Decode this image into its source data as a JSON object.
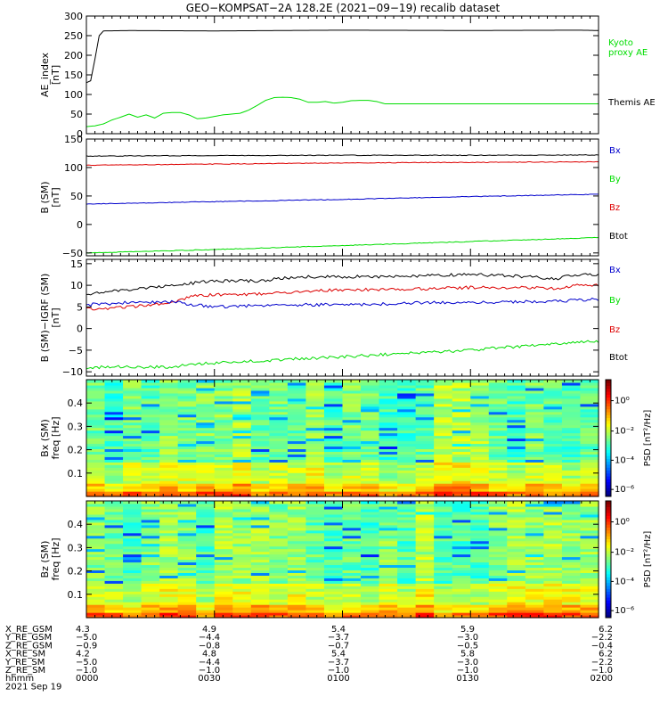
{
  "title": "GEO−KOMPSAT−2A 128.2E (2021−09−19) recalib dataset",
  "time_axis": {
    "range": [
      0,
      120
    ],
    "unit": "minutes since 0000 UT",
    "tick_values": [
      0,
      30,
      60,
      90,
      120
    ]
  },
  "chart_data": [
    {
      "type": "line",
      "id": "ae",
      "ylabel": "AE_index",
      "yunit": "[nT]",
      "ylim": [
        0,
        300
      ],
      "yticks": [
        0,
        50,
        100,
        150,
        200,
        250,
        300
      ],
      "legend": [
        {
          "label": "Kyoto",
          "color": "#00dd00"
        },
        {
          "label": "proxy AE",
          "color": "#00dd00"
        },
        {
          "label": "Themis AE",
          "color": "#000000"
        }
      ],
      "series": [
        {
          "color": "#000000",
          "points": [
            [
              0,
              130
            ],
            [
              1,
              135
            ],
            [
              2,
              190
            ],
            [
              3,
              250
            ],
            [
              4,
              262
            ],
            [
              10,
              263
            ],
            [
              30,
              262
            ],
            [
              60,
              264
            ],
            [
              90,
              263
            ],
            [
              115,
              264
            ],
            [
              120,
              263
            ]
          ]
        },
        {
          "color": "#00dd00",
          "points": [
            [
              0,
              18
            ],
            [
              2,
              20
            ],
            [
              4,
              25
            ],
            [
              6,
              35
            ],
            [
              8,
              42
            ],
            [
              10,
              50
            ],
            [
              12,
              42
            ],
            [
              14,
              48
            ],
            [
              16,
              40
            ],
            [
              18,
              52
            ],
            [
              20,
              54
            ],
            [
              22,
              54
            ],
            [
              24,
              48
            ],
            [
              26,
              38
            ],
            [
              28,
              40
            ],
            [
              30,
              44
            ],
            [
              32,
              48
            ],
            [
              34,
              50
            ],
            [
              36,
              52
            ],
            [
              38,
              60
            ],
            [
              40,
              72
            ],
            [
              42,
              85
            ],
            [
              44,
              92
            ],
            [
              46,
              93
            ],
            [
              48,
              92
            ],
            [
              50,
              88
            ],
            [
              52,
              80
            ],
            [
              54,
              80
            ],
            [
              56,
              82
            ],
            [
              58,
              78
            ],
            [
              60,
              80
            ],
            [
              62,
              84
            ],
            [
              64,
              85
            ],
            [
              66,
              85
            ],
            [
              68,
              82
            ],
            [
              70,
              76
            ],
            [
              80,
              76
            ],
            [
              100,
              76
            ],
            [
              120,
              76
            ]
          ]
        }
      ]
    },
    {
      "type": "line",
      "id": "bsm",
      "ylabel": "B (SM)",
      "yunit": "[nT]",
      "ylim": [
        -55,
        150
      ],
      "yticks": [
        -50,
        0,
        50,
        100,
        150
      ],
      "legend": [
        {
          "label": "Bx",
          "color": "#0000cc"
        },
        {
          "label": "By",
          "color": "#00dd00"
        },
        {
          "label": "Bz",
          "color": "#dd0000"
        },
        {
          "label": "Btot",
          "color": "#000000"
        }
      ],
      "series": [
        {
          "color": "#000000",
          "points": [
            [
              0,
              120
            ],
            [
              30,
              121
            ],
            [
              60,
              121.5
            ],
            [
              90,
              121.5
            ],
            [
              120,
              122
            ]
          ]
        },
        {
          "color": "#dd0000",
          "points": [
            [
              0,
              104
            ],
            [
              30,
              106
            ],
            [
              60,
              108
            ],
            [
              90,
              109
            ],
            [
              120,
              110
            ]
          ]
        },
        {
          "color": "#0000cc",
          "points": [
            [
              0,
              36
            ],
            [
              30,
              40
            ],
            [
              60,
              44
            ],
            [
              90,
              49
            ],
            [
              120,
              53
            ]
          ]
        },
        {
          "color": "#00dd00",
          "points": [
            [
              0,
              -50
            ],
            [
              30,
              -44
            ],
            [
              60,
              -37
            ],
            [
              90,
              -30
            ],
            [
              120,
              -23
            ]
          ]
        }
      ]
    },
    {
      "type": "line",
      "id": "bmi",
      "ylabel": "B (SM)−IGRF (SM)",
      "yunit": "[nT]",
      "ylim": [
        -11,
        16
      ],
      "yticks": [
        -10,
        -5,
        0,
        5,
        10,
        15
      ],
      "legend": [
        {
          "label": "Bx",
          "color": "#0000cc"
        },
        {
          "label": "By",
          "color": "#00dd00"
        },
        {
          "label": "Bz",
          "color": "#dd0000"
        },
        {
          "label": "Btot",
          "color": "#000000"
        }
      ],
      "series": [
        {
          "color": "#000000",
          "points": [
            [
              0,
              8
            ],
            [
              10,
              9
            ],
            [
              20,
              10
            ],
            [
              25,
              10.5
            ],
            [
              30,
              11
            ],
            [
              40,
              11
            ],
            [
              50,
              12
            ],
            [
              60,
              12
            ],
            [
              70,
              12
            ],
            [
              80,
              12.2
            ],
            [
              90,
              12.5
            ],
            [
              100,
              12.2
            ],
            [
              110,
              11.5
            ],
            [
              115,
              12.5
            ],
            [
              120,
              12.5
            ]
          ]
        },
        {
          "color": "#dd0000",
          "points": [
            [
              0,
              4.5
            ],
            [
              5,
              4.5
            ],
            [
              10,
              5
            ],
            [
              15,
              5.5
            ],
            [
              20,
              6
            ],
            [
              25,
              7.5
            ],
            [
              30,
              7.8
            ],
            [
              40,
              8
            ],
            [
              50,
              8.5
            ],
            [
              60,
              9
            ],
            [
              70,
              9
            ],
            [
              80,
              9.2
            ],
            [
              90,
              9.5
            ],
            [
              100,
              9.5
            ],
            [
              110,
              9.3
            ],
            [
              115,
              10
            ],
            [
              120,
              10
            ]
          ]
        },
        {
          "color": "#0000cc",
          "points": [
            [
              0,
              5.5
            ],
            [
              10,
              6
            ],
            [
              20,
              6.2
            ],
            [
              25,
              5.5
            ],
            [
              30,
              5
            ],
            [
              40,
              5.3
            ],
            [
              50,
              5.5
            ],
            [
              60,
              5.5
            ],
            [
              70,
              5.7
            ],
            [
              80,
              6
            ],
            [
              90,
              6
            ],
            [
              100,
              6.2
            ],
            [
              110,
              6.3
            ],
            [
              120,
              6.8
            ]
          ]
        },
        {
          "color": "#00dd00",
          "points": [
            [
              0,
              -9
            ],
            [
              10,
              -8.8
            ],
            [
              20,
              -9
            ],
            [
              25,
              -8.2
            ],
            [
              30,
              -8
            ],
            [
              40,
              -7.5
            ],
            [
              50,
              -7
            ],
            [
              60,
              -6.5
            ],
            [
              70,
              -6
            ],
            [
              80,
              -5.5
            ],
            [
              90,
              -5
            ],
            [
              100,
              -4.2
            ],
            [
              110,
              -3.5
            ],
            [
              120,
              -3
            ]
          ]
        }
      ]
    },
    {
      "type": "heatmap",
      "id": "bx_spec",
      "ylabel": "Bx (SM)",
      "yunit": "freq [Hz]",
      "ylim": [
        0,
        0.5
      ],
      "yticks": [
        0.1,
        0.2,
        0.3,
        0.4
      ],
      "colorbar_label": "PSD [nT²/Hz]",
      "colorbar_ticks": [
        "10⁰",
        "10⁻²",
        "10⁻⁴",
        "10⁻⁶"
      ],
      "seed": 7
    },
    {
      "type": "heatmap",
      "id": "bz_spec",
      "ylabel": "Bz (SM)",
      "yunit": "freq [Hz]",
      "ylim": [
        0,
        0.5
      ],
      "yticks": [
        0.1,
        0.2,
        0.3,
        0.4
      ],
      "colorbar_label": "PSD [nT²/Hz]",
      "colorbar_ticks": [
        "10⁰",
        "10⁻²",
        "10⁻⁴",
        "10⁻⁶"
      ],
      "seed": 19
    }
  ],
  "ephemeris": {
    "labels": [
      "X_RE_GSM",
      "Y_RE_GSM",
      "Z_RE_GSM",
      "X_RE_SM",
      "Y_RE_SM",
      "Z_RE_SM",
      "hhmm"
    ],
    "columns": [
      [
        "4.3",
        "−5.0",
        "−0.9",
        "4.2",
        "−5.0",
        "−1.0",
        "0000"
      ],
      [
        "4.9",
        "−4.4",
        "−0.8",
        "4.8",
        "−4.4",
        "−1.0",
        "0030"
      ],
      [
        "5.4",
        "−3.7",
        "−0.7",
        "5.4",
        "−3.7",
        "−1.0",
        "0100"
      ],
      [
        "5.9",
        "−3.0",
        "−0.5",
        "5.8",
        "−3.0",
        "−1.0",
        "0130"
      ],
      [
        "6.2",
        "−2.2",
        "−0.4",
        "6.2",
        "−2.2",
        "−1.0",
        "0200"
      ]
    ],
    "date": "2021 Sep 19"
  }
}
